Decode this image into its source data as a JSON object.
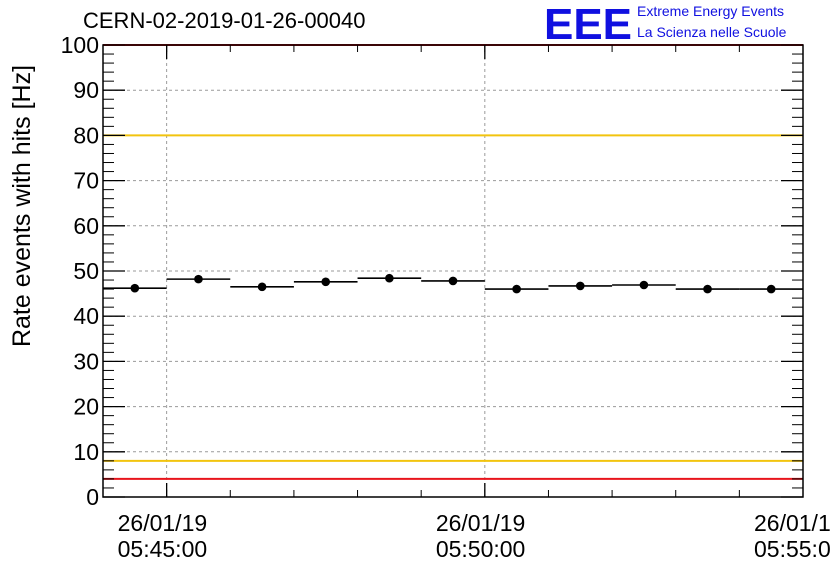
{
  "title": "CERN-02-2019-01-26-00040",
  "logo": {
    "mark": "EEE",
    "line1": "Extreme Energy Events",
    "line2": "La Scienza nelle Scuole",
    "color": "#1010e0"
  },
  "chart_data": {
    "type": "scatter",
    "ylabel": "Rate events with hits [Hz]",
    "ylim": [
      0,
      100
    ],
    "yticks": [
      "0",
      "10",
      "20",
      "30",
      "40",
      "50",
      "60",
      "70",
      "80",
      "90",
      "100"
    ],
    "xlim": [
      "05:44:00",
      "05:55:00"
    ],
    "xticks": [
      {
        "date": "26/01/19",
        "time": "05:45:00"
      },
      {
        "date": "26/01/19",
        "time": "05:50:00"
      },
      {
        "date": "26/01/1",
        "time": "05:55:0"
      }
    ],
    "grid": true,
    "points": [
      {
        "x_start": "05:44:00",
        "x_end": "05:45:00",
        "y": 46.2
      },
      {
        "x_start": "05:45:00",
        "x_end": "05:46:00",
        "y": 48.2
      },
      {
        "x_start": "05:46:00",
        "x_end": "05:47:00",
        "y": 46.5
      },
      {
        "x_start": "05:47:00",
        "x_end": "05:48:00",
        "y": 47.6
      },
      {
        "x_start": "05:48:00",
        "x_end": "05:49:00",
        "y": 48.4
      },
      {
        "x_start": "05:49:00",
        "x_end": "05:50:00",
        "y": 47.8
      },
      {
        "x_start": "05:50:00",
        "x_end": "05:51:00",
        "y": 46.0
      },
      {
        "x_start": "05:51:00",
        "x_end": "05:52:00",
        "y": 46.7
      },
      {
        "x_start": "05:52:00",
        "x_end": "05:53:00",
        "y": 46.9
      },
      {
        "x_start": "05:53:00",
        "x_end": "05:54:00",
        "y": 46.0
      },
      {
        "x_start": "05:54:00",
        "x_end": "05:55:00",
        "y": 46.0
      }
    ],
    "reference_lines": [
      {
        "y": 100,
        "color": "#e8141c"
      },
      {
        "y": 80,
        "color": "#f2c40f"
      },
      {
        "y": 8,
        "color": "#f2c40f"
      },
      {
        "y": 4,
        "color": "#e8141c"
      }
    ]
  }
}
